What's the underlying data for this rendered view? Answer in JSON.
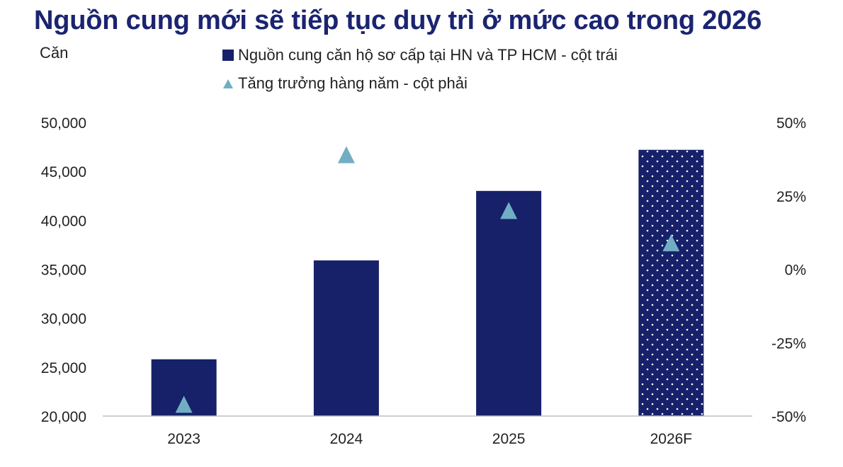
{
  "title": "Nguồn cung mới sẽ tiếp tục duy trì ở mức cao trong 2026",
  "unit_left": "Căn",
  "legend": {
    "bar_label": "Nguồn cung căn hộ sơ cấp tại HN và TP HCM - cột trái",
    "marker_label": "Tăng trưởng hàng năm - cột phải"
  },
  "colors": {
    "bar": "#16216a",
    "marker": "#72aec3",
    "axis": "#bfbfbf"
  },
  "chart_data": {
    "type": "bar",
    "categories": [
      "2023",
      "2024",
      "2025",
      "2026F"
    ],
    "series": [
      {
        "name": "Nguồn cung căn hộ sơ cấp tại HN và TP HCM - cột trái",
        "axis": "left",
        "values": [
          25800,
          35900,
          43000,
          47200
        ],
        "forecast_index": 3,
        "forecast_pattern": "dotted"
      },
      {
        "name": "Tăng trưởng hàng năm - cột phải",
        "axis": "right",
        "marker": "triangle",
        "values": [
          -46,
          39,
          20,
          9
        ]
      }
    ],
    "y_left": {
      "range": [
        20000,
        50000
      ],
      "ticks": [
        20000,
        25000,
        30000,
        35000,
        40000,
        45000,
        50000
      ],
      "tick_labels": [
        "20,000",
        "25,000",
        "30,000",
        "35,000",
        "40,000",
        "45,000",
        "50,000"
      ]
    },
    "y_right": {
      "range": [
        -50,
        50
      ],
      "ticks": [
        -50,
        -25,
        0,
        25,
        50
      ],
      "tick_labels": [
        "-50%",
        "-25%",
        "0%",
        "25%",
        "50%"
      ]
    },
    "grid": false,
    "legend_position": "top"
  }
}
